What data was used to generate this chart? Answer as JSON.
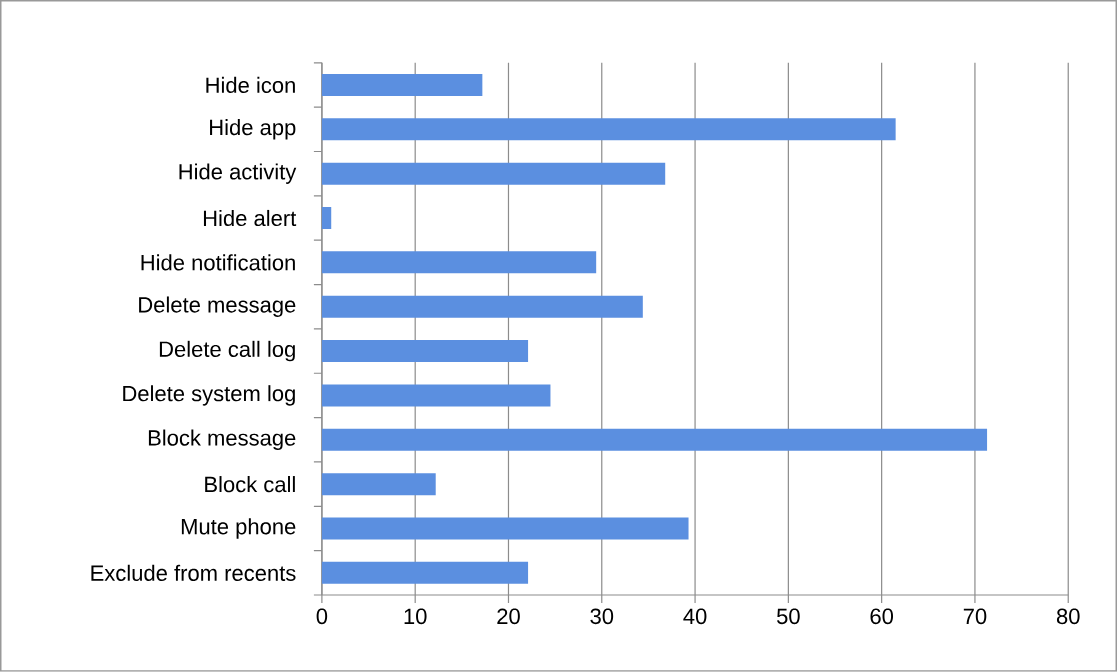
{
  "chart_data": {
    "type": "bar",
    "orientation": "horizontal",
    "categories": [
      "Hide icon",
      "Hide app",
      "Hide activity",
      "Hide alert",
      "Hide notification",
      "Delete message",
      "Delete call log",
      "Delete system log",
      "Block message",
      "Block call",
      "Mute phone",
      "Exclude from recents"
    ],
    "values": [
      17.2,
      61.5,
      36.8,
      1.0,
      29.4,
      34.4,
      22.1,
      24.5,
      71.3,
      12.2,
      39.3,
      22.1
    ],
    "color": "#5b8fe0",
    "xlim": [
      0,
      80
    ],
    "xticks": [
      0,
      10,
      20,
      30,
      40,
      50,
      60,
      70,
      80
    ],
    "grid": "x"
  }
}
